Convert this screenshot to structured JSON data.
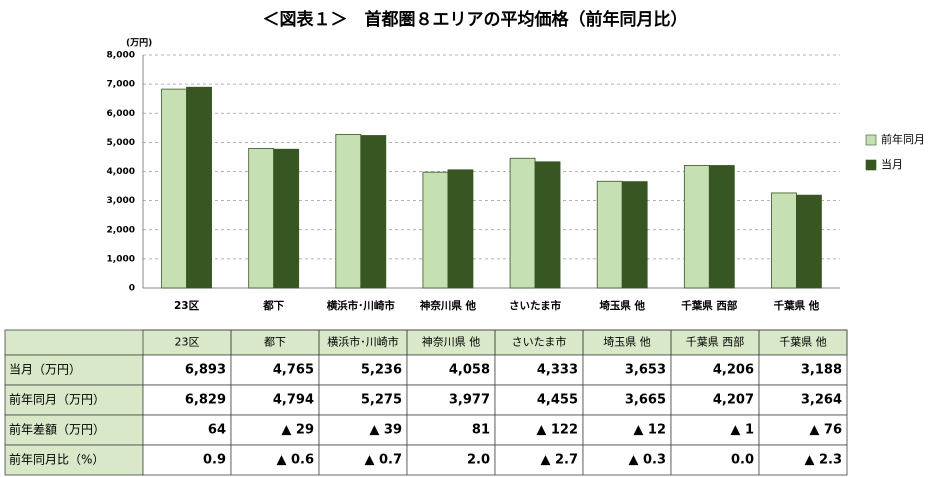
{
  "chart_data": {
    "type": "bar",
    "title": "＜図表１＞　首都圏８エリアの平均価格（前年同月比）",
    "y_unit": "(万円)",
    "categories": [
      "23区",
      "都下",
      "横浜市･川崎市",
      "神奈川県 他",
      "さいたま市",
      "埼玉県 他",
      "千葉県 西部",
      "千葉県 他"
    ],
    "series": [
      {
        "name": "前年同月",
        "color": "#c6e0b4",
        "values": [
          6829,
          4794,
          5275,
          3977,
          4455,
          3665,
          4207,
          3264
        ],
        "value_labels": [
          "6,829",
          "4,794",
          "5,275",
          "3,977",
          "4,455",
          "3,665",
          "4,207",
          "3,264"
        ]
      },
      {
        "name": "当月",
        "color": "#375623",
        "values": [
          6893,
          4765,
          5236,
          4058,
          4333,
          3653,
          4206,
          3188
        ],
        "value_labels": [
          "6,893",
          "4,765",
          "5,236",
          "4,058",
          "4,333",
          "3,653",
          "4,206",
          "3,188"
        ]
      }
    ],
    "ylim": [
      0,
      8000
    ],
    "yticks": [
      0,
      {
        "value": 1000,
        "label": "1,000"
      },
      {
        "value": 2000,
        "label": "2,000"
      },
      {
        "value": 3000,
        "label": "3,000"
      },
      {
        "value": 4000,
        "label": "4,000"
      },
      {
        "value": 5000,
        "label": "5,000"
      },
      {
        "value": 6000,
        "label": "6,000"
      },
      {
        "value": 7000,
        "label": "7,000"
      },
      {
        "value": 8000,
        "label": "8,000"
      }
    ],
    "grid": true,
    "legend": "right"
  },
  "table": {
    "row_labels": [
      "当月（万円）",
      "前年同月（万円）",
      "前年差額（万円）",
      "前年同月比（%）"
    ],
    "rows": [
      [
        "64",
        "▲ 29",
        "▲ 39",
        "81",
        "▲ 122",
        "▲ 12",
        "▲ 1",
        "▲ 76"
      ],
      [
        "0.9",
        "▲ 0.6",
        "▲ 0.7",
        "2.0",
        "▲ 2.7",
        "▲ 0.3",
        "0.0",
        "▲ 2.3"
      ]
    ]
  }
}
